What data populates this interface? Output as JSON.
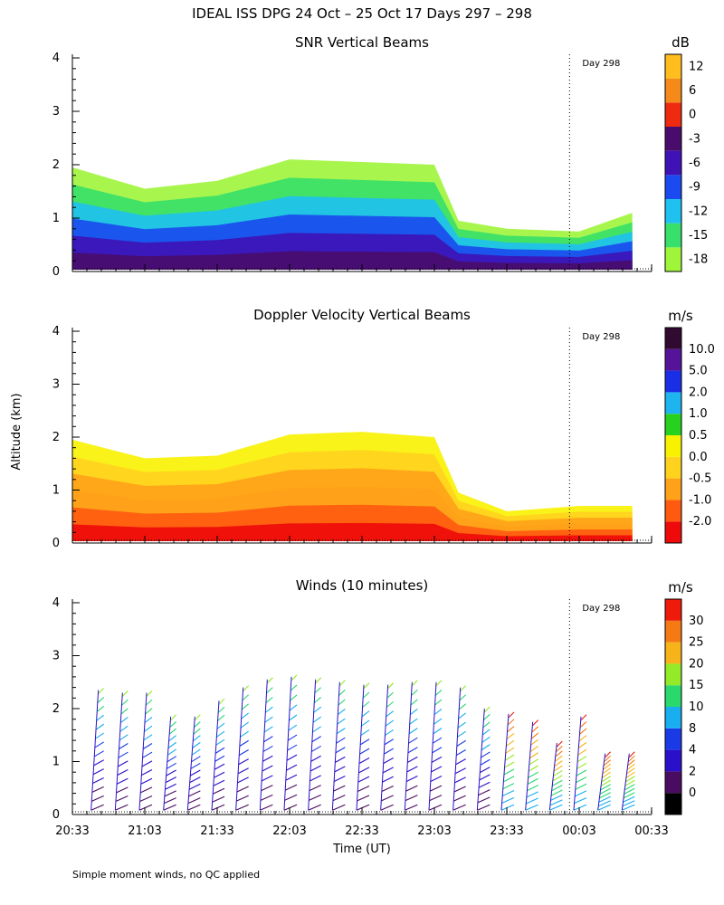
{
  "figure": {
    "title": "IDEAL ISS DPG  24 Oct – 25 Oct 17 Days 297 – 298",
    "xlabel": "Time (UT)",
    "ylabel": "Altitude (km)",
    "note": "Simple moment winds, no QC applied",
    "day_marker_label": "Day 298"
  },
  "chart_data": [
    {
      "type": "heatmap",
      "title": "SNR Vertical Beams",
      "unit": "dB",
      "xlabel": "",
      "ylabel": "Altitude (km)",
      "x_tick_labels": [],
      "y_ticks": [
        "0",
        "1",
        "2",
        "3",
        "4"
      ],
      "ylim": [
        0,
        4
      ],
      "day_marker_time": "23:59",
      "colorbar": {
        "colors": [
          "#9ff53a",
          "#36e06a",
          "#1ec1f0",
          "#1a4af0",
          "#3e12b5",
          "#4a0c6c",
          "#ee2a10",
          "#f58a1a",
          "#ffbe1e"
        ],
        "labels": [
          "-18",
          "-15",
          "-12",
          "-9",
          "-6",
          "-3",
          "0",
          "6",
          "12"
        ]
      },
      "observed_extent": [
        {
          "time": "20:33",
          "top_km": 1.95
        },
        {
          "time": "21:03",
          "top_km": 1.55
        },
        {
          "time": "21:33",
          "top_km": 1.7
        },
        {
          "time": "22:03",
          "top_km": 2.1
        },
        {
          "time": "22:33",
          "top_km": 2.05
        },
        {
          "time": "23:03",
          "top_km": 2.0
        },
        {
          "time": "23:13",
          "top_km": 0.95
        },
        {
          "time": "23:33",
          "top_km": 0.8
        },
        {
          "time": "00:03",
          "top_km": 0.75
        },
        {
          "time": "00:25",
          "top_km": 1.1
        }
      ]
    },
    {
      "type": "heatmap",
      "title": "Doppler Velocity Vertical Beams",
      "unit": "m/s",
      "xlabel": "",
      "ylabel": "Altitude (km)",
      "x_tick_labels": [],
      "y_ticks": [
        "0",
        "1",
        "2",
        "3",
        "4"
      ],
      "ylim": [
        0,
        4
      ],
      "day_marker_time": "23:59",
      "colorbar": {
        "colors": [
          "#ee0a0a",
          "#ff5a10",
          "#ffa21a",
          "#ffd21e",
          "#f8f200",
          "#27d21e",
          "#1eb4f0",
          "#1a2ee6",
          "#55139a",
          "#300a30"
        ],
        "labels": [
          "-2.0",
          "-1.0",
          "-0.5",
          "0.0",
          "0.5",
          "1.0",
          "2.0",
          "5.0",
          "10.0"
        ]
      },
      "observed_extent": [
        {
          "time": "20:33",
          "top_km": 1.95
        },
        {
          "time": "21:03",
          "top_km": 1.6
        },
        {
          "time": "21:33",
          "top_km": 1.65
        },
        {
          "time": "22:03",
          "top_km": 2.05
        },
        {
          "time": "22:33",
          "top_km": 2.1
        },
        {
          "time": "23:03",
          "top_km": 2.0
        },
        {
          "time": "23:13",
          "top_km": 0.95
        },
        {
          "time": "23:33",
          "top_km": 0.6
        },
        {
          "time": "00:03",
          "top_km": 0.7
        },
        {
          "time": "00:25",
          "top_km": 0.7
        }
      ]
    },
    {
      "type": "scatter",
      "title": "Winds (10 minutes)",
      "unit": "m/s",
      "xlabel": "Time (UT)",
      "ylabel": "Altitude (km)",
      "x_tick_labels": [
        "20:33",
        "21:03",
        "21:33",
        "22:03",
        "22:33",
        "23:03",
        "23:33",
        "00:03",
        "00:33"
      ],
      "y_ticks": [
        "0",
        "1",
        "2",
        "3",
        "4"
      ],
      "ylim": [
        0,
        4
      ],
      "day_marker_time": "23:59",
      "colorbar": {
        "colors": [
          "#000000",
          "#4a0c60",
          "#2a10c8",
          "#1a3ae6",
          "#18aef0",
          "#2ad86e",
          "#93ea26",
          "#f7b31a",
          "#f57a14",
          "#ee1a0a"
        ],
        "labels": [
          "0",
          "2",
          "4",
          "8",
          "10",
          "15",
          "20",
          "25",
          "30"
        ]
      },
      "profile_times": [
        "20:43",
        "20:53",
        "21:03",
        "21:13",
        "21:23",
        "21:33",
        "21:43",
        "21:53",
        "22:03",
        "22:13",
        "22:23",
        "22:33",
        "22:43",
        "22:53",
        "23:03",
        "23:13",
        "23:23",
        "23:33",
        "23:43",
        "23:53",
        "00:03",
        "00:13",
        "00:23"
      ],
      "profile_top_km": [
        2.35,
        2.3,
        2.3,
        1.85,
        1.85,
        2.15,
        2.4,
        2.55,
        2.6,
        2.55,
        2.5,
        2.45,
        2.45,
        2.5,
        2.5,
        2.4,
        2.0,
        1.9,
        1.75,
        1.35,
        1.85,
        1.15,
        1.15
      ]
    }
  ]
}
